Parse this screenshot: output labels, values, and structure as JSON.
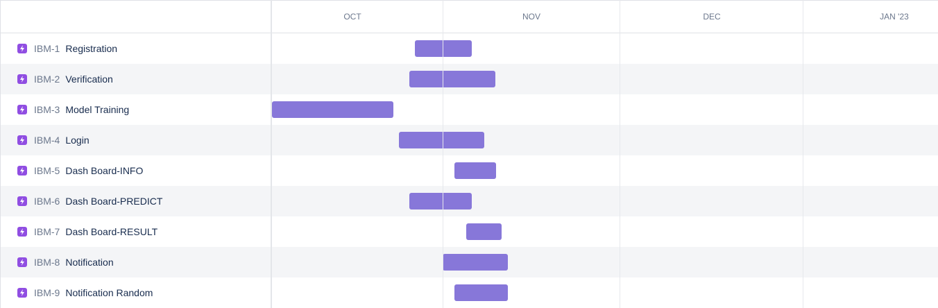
{
  "months": [
    "OCT",
    "NOV",
    "DEC",
    "JAN '23"
  ],
  "colors": {
    "bar": "#8777d9",
    "epic_icon": "#904ee2",
    "row_alt": "#f4f5f7",
    "grid": "#e6e8ec"
  },
  "issues": [
    {
      "key": "IBM-1",
      "summary": "Registration",
      "icon": "lightning-icon",
      "start": "Oct 27",
      "end": "Nov 06"
    },
    {
      "key": "IBM-2",
      "summary": "Verification",
      "icon": "lightning-icon",
      "start": "Oct 26",
      "end": "Nov 10"
    },
    {
      "key": "IBM-3",
      "summary": "Model Training",
      "icon": "lightning-icon",
      "start": "Oct 01",
      "end": "Oct 23"
    },
    {
      "key": "IBM-4",
      "summary": "Login",
      "icon": "lightning-icon",
      "start": "Oct 24",
      "end": "Nov 08"
    },
    {
      "key": "IBM-5",
      "summary": "Dash Board-INFO",
      "icon": "lightning-icon",
      "start": "Nov 03",
      "end": "Nov 10"
    },
    {
      "key": "IBM-6",
      "summary": "Dash Board-PREDICT",
      "icon": "lightning-icon",
      "start": "Oct 26",
      "end": "Nov 06"
    },
    {
      "key": "IBM-7",
      "summary": "Dash Board-RESULT",
      "icon": "lightning-icon",
      "start": "Nov 05",
      "end": "Nov 11"
    },
    {
      "key": "IBM-8",
      "summary": "Notification",
      "icon": "lightning-icon",
      "start": "Nov 01",
      "end": "Nov 12"
    },
    {
      "key": "IBM-9",
      "summary": "Notification Random",
      "icon": "lightning-icon",
      "start": "Nov 03",
      "end": "Nov 12"
    }
  ]
}
